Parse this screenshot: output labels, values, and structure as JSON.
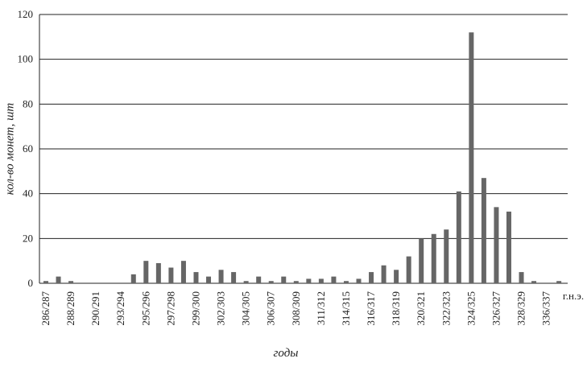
{
  "chart_data": {
    "type": "bar",
    "x_label": "годы",
    "y_label": "кол-во монет, шт",
    "x_unit_label": "г.н.э.",
    "categories": [
      "286/287",
      null,
      "288/289",
      null,
      "290/291",
      null,
      "293/294",
      null,
      "295/296",
      null,
      "297/298",
      null,
      "299/300",
      null,
      "302/303",
      null,
      "304/305",
      null,
      "306/307",
      null,
      "308/309",
      null,
      "311/312",
      null,
      "314/315",
      null,
      "316/317",
      null,
      "318/319",
      null,
      "320/321",
      null,
      "322/323",
      null,
      "324/325",
      null,
      "326/327",
      null,
      "328/329",
      null,
      "336/337",
      null
    ],
    "values": [
      1,
      3,
      1,
      0,
      0,
      0,
      0,
      4,
      10,
      9,
      7,
      10,
      5,
      3,
      6,
      5,
      1,
      3,
      1,
      3,
      1,
      2,
      2,
      3,
      1,
      2,
      5,
      8,
      6,
      12,
      20,
      22,
      24,
      41,
      112,
      47,
      34,
      32,
      5,
      1,
      0,
      1
    ],
    "color": "#666666",
    "ylim": [
      0,
      120
    ],
    "yticks": [
      0,
      20,
      40,
      60,
      80,
      100,
      120
    ],
    "grid": true
  }
}
